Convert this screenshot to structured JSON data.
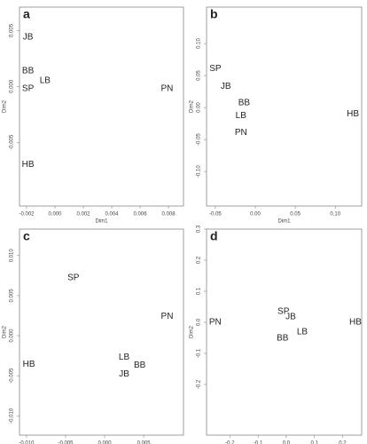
{
  "chart_data": [
    {
      "type": "scatter",
      "panel": "a",
      "x_label": "Dim1",
      "y_label": "Dim2",
      "labels": [
        "JB",
        "BB",
        "LB",
        "SP",
        "PN",
        "HB"
      ],
      "x": [
        -0.0019,
        -0.0019,
        -0.0007,
        -0.0019,
        0.0079,
        -0.0019
      ],
      "y": [
        0.0044,
        0.0014,
        0.0005,
        -0.0002,
        -0.0002,
        -0.007
      ],
      "xlim": [
        -0.0025,
        0.00906
      ],
      "ylim": [
        -0.0107,
        0.0071
      ],
      "xticks": [
        {
          "value": -0.002,
          "label": "-0.002"
        },
        {
          "value": 0,
          "label": "0.000"
        },
        {
          "value": 0.002,
          "label": "0.002"
        },
        {
          "value": 0.004,
          "label": "0.004"
        },
        {
          "value": 0.006,
          "label": "0.006"
        },
        {
          "value": 0.008,
          "label": "0.008"
        }
      ],
      "yticks": [
        {
          "value": 0.005,
          "label": "0.005"
        },
        {
          "value": 0,
          "label": "0.000"
        },
        {
          "value": -0.005,
          "label": "-0.005"
        }
      ]
    },
    {
      "type": "scatter",
      "panel": "b",
      "x_label": "Dim1",
      "y_label": "Dim2",
      "labels": [
        "SP",
        "JB",
        "BB",
        "LB",
        "PN",
        "HB"
      ],
      "x": [
        -0.05,
        -0.037,
        -0.014,
        -0.018,
        -0.018,
        0.122
      ],
      "y": [
        0.061,
        0.033,
        0.007,
        -0.013,
        -0.039,
        -0.01
      ],
      "xlim": [
        -0.061,
        0.133
      ],
      "ylim": [
        -0.154,
        0.157
      ],
      "xticks": [
        {
          "value": -0.05,
          "label": "-0.05"
        },
        {
          "value": 0,
          "label": "0.00"
        },
        {
          "value": 0.05,
          "label": "0.05"
        },
        {
          "value": 0.1,
          "label": "0.10"
        }
      ],
      "yticks": [
        {
          "value": 0.1,
          "label": "0.10"
        },
        {
          "value": 0.05,
          "label": "0.05"
        },
        {
          "value": 0,
          "label": "0.00"
        },
        {
          "value": -0.05,
          "label": "-0.05"
        },
        {
          "value": -0.1,
          "label": "-0.10"
        }
      ]
    },
    {
      "type": "scatter",
      "panel": "c",
      "x_label": "Dim1",
      "y_label": "Dim2",
      "labels": [
        "SP",
        "PN",
        "HB",
        "LB",
        "BB",
        "JB"
      ],
      "x": [
        -0.004,
        0.008,
        -0.0097,
        0.0025,
        0.0045,
        0.0025
      ],
      "y": [
        0.0072,
        0.0024,
        -0.0036,
        -0.0027,
        -0.0037,
        -0.0048
      ],
      "xlim": [
        -0.0109,
        0.0101
      ],
      "ylim": [
        -0.0124,
        0.0133
      ],
      "xticks": [
        {
          "value": -0.01,
          "label": "-0.010"
        },
        {
          "value": -0.005,
          "label": "-0.005"
        },
        {
          "value": 0,
          "label": "0.000"
        },
        {
          "value": 0.005,
          "label": "0.005"
        }
      ],
      "yticks": [
        {
          "value": 0.01,
          "label": "0.010"
        },
        {
          "value": 0.005,
          "label": "0.005"
        },
        {
          "value": 0,
          "label": "0.000"
        },
        {
          "value": -0.005,
          "label": "-0.005"
        },
        {
          "value": -0.01,
          "label": "-0.010"
        }
      ]
    },
    {
      "type": "scatter",
      "panel": "d",
      "x_label": "Dim1",
      "y_label": "Dim2",
      "labels": [
        "PN",
        "SP",
        "JB",
        "LB",
        "BB",
        "HB"
      ],
      "x": [
        -0.252,
        -0.01,
        0.016,
        0.057,
        -0.013,
        0.246
      ],
      "y": [
        0,
        0.034,
        0.017,
        -0.031,
        -0.051,
        0
      ],
      "xlim": [
        -0.283,
        0.268
      ],
      "ylim": [
        -0.363,
        0.3
      ],
      "xticks": [
        -0.2,
        -0.1,
        {
          "value": 0,
          "label": "0.0"
        },
        0.1,
        0.2
      ],
      "yticks": [
        0.3,
        0.2,
        0.1,
        {
          "value": 0,
          "label": "0.0"
        },
        -0.1,
        -0.2
      ]
    }
  ]
}
